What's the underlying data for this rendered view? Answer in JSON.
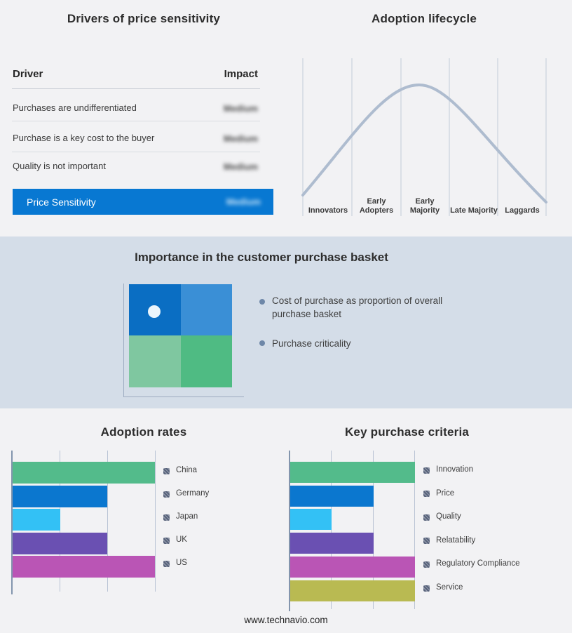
{
  "colors": {
    "page_bg": "#f2f2f4",
    "band_bg": "#d4dde8",
    "accent_blue": "#0878d2",
    "gridline": "#b9c3d4",
    "axis": "#8395ad",
    "curve": "#aebccf",
    "legend_swatch": "#57627a",
    "bullet_marker": "#6e87a8"
  },
  "footer": {
    "url": "www.technavio.com"
  },
  "drivers_panel": {
    "title": "Drivers of price sensitivity",
    "columns": {
      "driver": "Driver",
      "impact": "Impact"
    },
    "rows": [
      {
        "driver": "Purchases are undifferentiated",
        "impact": "Medium",
        "impact_blurred": true
      },
      {
        "driver": "Purchase is a key cost to the buyer",
        "impact": "Medium",
        "impact_blurred": true
      },
      {
        "driver": "Quality is not important",
        "impact": "Medium",
        "impact_blurred": true
      }
    ],
    "summary_row": {
      "label": "Price Sensitivity",
      "impact": "Medium",
      "impact_blurred": true,
      "bg_color": "#0878d2"
    }
  },
  "basket_band": {
    "title": "Importance in the customer purchase basket",
    "bullets": [
      "Cost of purchase as proportion of overall purchase basket",
      "Purchase criticality"
    ],
    "quadrant": {
      "top_left": "#0a6ec3",
      "top_right": "#3a8fd6",
      "bottom_left": "#7fc7a0",
      "bottom_right": "#4fbb83",
      "marker_quadrant": "top_left",
      "marker_color": "#eaf5fc"
    }
  },
  "chart_data": [
    {
      "id": "adoption-lifecycle",
      "type": "line",
      "title": "Adoption lifecycle",
      "stages": [
        "Innovators",
        "Early Adopters",
        "Early Majority",
        "Late Majority",
        "Laggards"
      ],
      "curve": "bell-shaped adoption curve rising from Innovators, peaking at Early Majority, falling to Laggards",
      "curve_color": "#aebccf",
      "gridlines": "vertical stage separators",
      "axis_tick_labels_visible": false
    },
    {
      "id": "adoption-rates",
      "type": "bar",
      "orientation": "horizontal",
      "title": "Adoption rates",
      "categories": [
        "China",
        "Germany",
        "Japan",
        "UK",
        "US"
      ],
      "values": [
        3,
        2,
        1,
        2,
        3
      ],
      "xlim": [
        0,
        3
      ],
      "value_unit": "relative grid units (no numeric tick labels shown)",
      "colors": [
        "#53bb8b",
        "#0b77cf",
        "#33c1f5",
        "#6a50b2",
        "#ba55b5"
      ],
      "legend_position": "right",
      "grid": true
    },
    {
      "id": "key-purchase-criteria",
      "type": "bar",
      "orientation": "horizontal",
      "title": "Key purchase criteria",
      "categories": [
        "Innovation",
        "Price",
        "Quality",
        "Relatability",
        "Regulatory Compliance",
        "Service"
      ],
      "values": [
        3,
        2,
        1,
        2,
        3,
        3
      ],
      "xlim": [
        0,
        3
      ],
      "value_unit": "relative grid units (no numeric tick labels shown)",
      "colors": [
        "#53bb8b",
        "#0b77cf",
        "#33c1f5",
        "#6a50b2",
        "#ba55b5",
        "#b9ba52"
      ],
      "legend_position": "right",
      "grid": true
    }
  ]
}
